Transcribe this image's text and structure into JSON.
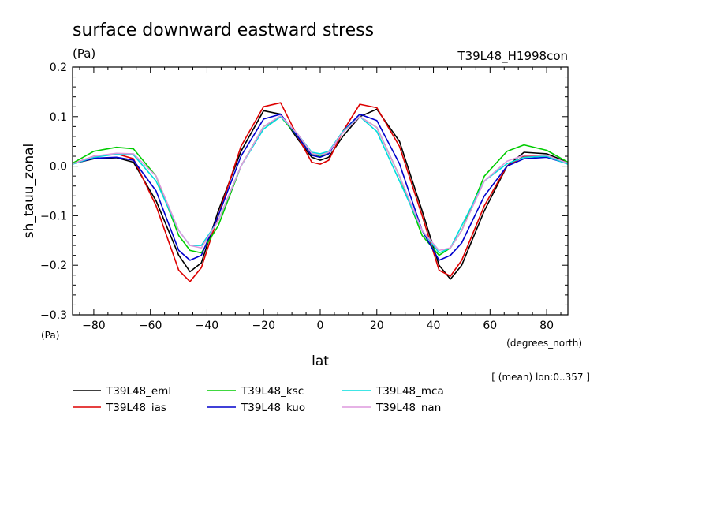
{
  "chart_data": {
    "type": "line",
    "title": "surface downward eastward stress",
    "title_units": "(Pa)",
    "run_label": "T39L48_H1998con",
    "ylabel": "sh_tauu_zonal",
    "y_units": "(Pa)",
    "xlabel": "lat",
    "x_units": "(degrees_north)",
    "note": "[ (mean) lon:0..357 ]",
    "xlim": [
      -87.5,
      87.5
    ],
    "ylim": [
      -0.3,
      0.2
    ],
    "x_ticks": [
      -80,
      -60,
      -40,
      -20,
      0,
      20,
      40,
      60,
      80
    ],
    "x_tick_labels": [
      "−80",
      "−60",
      "−40",
      "−20",
      "0",
      "20",
      "40",
      "60",
      "80"
    ],
    "y_ticks": [
      -0.3,
      -0.2,
      -0.1,
      0.0,
      0.1,
      0.2
    ],
    "y_tick_labels": [
      "−0.3",
      "−0.2",
      "−0.1",
      "0.0",
      "0.1",
      "0.2"
    ],
    "grid": false,
    "legend_position": "bottom",
    "x": [
      -87.5,
      -80,
      -72,
      -66,
      -58,
      -50,
      -46,
      -42,
      -36,
      -28,
      -20,
      -14,
      -8,
      -3,
      0,
      3,
      8,
      14,
      20,
      28,
      36,
      42,
      46,
      50,
      58,
      66,
      72,
      80,
      87.5
    ],
    "series": [
      {
        "name": "T39L48_eml",
        "color": "#000000",
        "values": [
          0.005,
          0.015,
          0.017,
          0.008,
          -0.07,
          -0.18,
          -0.213,
          -0.195,
          -0.09,
          0.03,
          0.112,
          0.105,
          0.055,
          0.018,
          0.012,
          0.018,
          0.06,
          0.1,
          0.115,
          0.05,
          -0.09,
          -0.2,
          -0.228,
          -0.2,
          -0.09,
          0.0,
          0.028,
          0.025,
          0.008
        ]
      },
      {
        "name": "T39L48_ias",
        "color": "#dd0000",
        "values": [
          0.005,
          0.02,
          0.025,
          0.015,
          -0.08,
          -0.21,
          -0.233,
          -0.205,
          -0.1,
          0.04,
          0.12,
          0.128,
          0.06,
          0.008,
          0.004,
          0.012,
          0.07,
          0.125,
          0.118,
          0.04,
          -0.1,
          -0.21,
          -0.222,
          -0.19,
          -0.08,
          0.0,
          0.02,
          0.02,
          0.005
        ]
      },
      {
        "name": "T39L48_ksc",
        "color": "#00cc00",
        "values": [
          0.006,
          0.03,
          0.038,
          0.035,
          -0.02,
          -0.14,
          -0.17,
          -0.175,
          -0.12,
          0.0,
          0.08,
          0.1,
          0.06,
          0.025,
          0.02,
          0.028,
          0.07,
          0.1,
          0.078,
          -0.02,
          -0.14,
          -0.18,
          -0.165,
          -0.13,
          -0.02,
          0.03,
          0.043,
          0.032,
          0.008
        ]
      },
      {
        "name": "T39L48_kuo",
        "color": "#0000cc",
        "values": [
          0.005,
          0.016,
          0.018,
          0.012,
          -0.05,
          -0.17,
          -0.19,
          -0.18,
          -0.1,
          0.02,
          0.095,
          0.105,
          0.06,
          0.022,
          0.018,
          0.025,
          0.07,
          0.105,
          0.092,
          0.005,
          -0.13,
          -0.19,
          -0.18,
          -0.155,
          -0.06,
          0.0,
          0.015,
          0.018,
          0.005
        ]
      },
      {
        "name": "T39L48_mca",
        "color": "#00dddd",
        "values": [
          0.004,
          0.018,
          0.024,
          0.023,
          -0.03,
          -0.13,
          -0.16,
          -0.16,
          -0.11,
          0.0,
          0.075,
          0.1,
          0.065,
          0.028,
          0.025,
          0.03,
          0.07,
          0.1,
          0.07,
          -0.03,
          -0.13,
          -0.175,
          -0.165,
          -0.12,
          -0.03,
          0.005,
          0.018,
          0.02,
          0.004
        ]
      },
      {
        "name": "T39L48_nan",
        "color": "#dd99dd",
        "values": [
          0.005,
          0.02,
          0.026,
          0.025,
          -0.02,
          -0.13,
          -0.16,
          -0.165,
          -0.11,
          0.0,
          0.08,
          0.102,
          0.065,
          0.026,
          0.022,
          0.028,
          0.068,
          0.1,
          0.078,
          -0.02,
          -0.13,
          -0.17,
          -0.165,
          -0.13,
          -0.03,
          0.01,
          0.022,
          0.022,
          0.006
        ]
      }
    ]
  }
}
